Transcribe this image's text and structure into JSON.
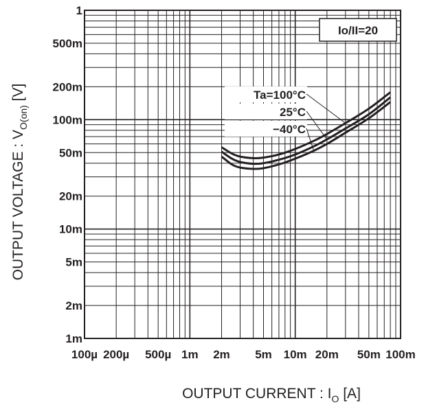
{
  "chart_data": {
    "type": "line",
    "title": "",
    "xlabel": "OUTPUT CURRENT : I",
    "xlabel_sub": "O",
    "xlabel_unit": " [A]",
    "ylabel": "OUTPUT VOLTAGE : V",
    "ylabel_sub": "O(on)",
    "ylabel_unit": " [V]",
    "x_scale": "log",
    "y_scale": "log",
    "xlim": [
      0.0001,
      0.1
    ],
    "ylim": [
      0.001,
      1
    ],
    "grid": true,
    "x_ticks": [
      {
        "value": 0.0001,
        "label": "100µ"
      },
      {
        "value": 0.0002,
        "label": "200µ"
      },
      {
        "value": 0.0005,
        "label": "500µ"
      },
      {
        "value": 0.001,
        "label": "1m"
      },
      {
        "value": 0.002,
        "label": "2m"
      },
      {
        "value": 0.005,
        "label": "5m"
      },
      {
        "value": 0.01,
        "label": "10m"
      },
      {
        "value": 0.02,
        "label": "20m"
      },
      {
        "value": 0.05,
        "label": "50m"
      },
      {
        "value": 0.1,
        "label": "100m"
      }
    ],
    "y_ticks": [
      {
        "value": 0.001,
        "label": "1m"
      },
      {
        "value": 0.002,
        "label": "2m"
      },
      {
        "value": 0.005,
        "label": "5m"
      },
      {
        "value": 0.01,
        "label": "10m"
      },
      {
        "value": 0.02,
        "label": "20m"
      },
      {
        "value": 0.05,
        "label": "50m"
      },
      {
        "value": 0.1,
        "label": "100m"
      },
      {
        "value": 0.2,
        "label": "200m"
      },
      {
        "value": 0.5,
        "label": "500m"
      },
      {
        "value": 1,
        "label": "1"
      }
    ],
    "condition_label": "Io/II=20",
    "series": [
      {
        "name": "Ta=100°C",
        "x": [
          0.002,
          0.0025,
          0.003,
          0.004,
          0.005,
          0.007,
          0.01,
          0.015,
          0.02,
          0.03,
          0.05,
          0.08
        ],
        "y": [
          0.056,
          0.049,
          0.046,
          0.0445,
          0.045,
          0.048,
          0.054,
          0.064,
          0.074,
          0.093,
          0.126,
          0.178
        ]
      },
      {
        "name": "25°C",
        "x": [
          0.002,
          0.0025,
          0.003,
          0.004,
          0.005,
          0.007,
          0.01,
          0.015,
          0.02,
          0.03,
          0.05,
          0.08
        ],
        "y": [
          0.051,
          0.044,
          0.041,
          0.0395,
          0.04,
          0.043,
          0.048,
          0.057,
          0.066,
          0.083,
          0.112,
          0.16
        ]
      },
      {
        "name": "−40°C",
        "x": [
          0.002,
          0.0025,
          0.003,
          0.004,
          0.005,
          0.007,
          0.01,
          0.015,
          0.02,
          0.03,
          0.05,
          0.08
        ],
        "y": [
          0.046,
          0.039,
          0.0365,
          0.0355,
          0.036,
          0.039,
          0.044,
          0.052,
          0.06,
          0.076,
          0.103,
          0.145
        ]
      }
    ]
  }
}
